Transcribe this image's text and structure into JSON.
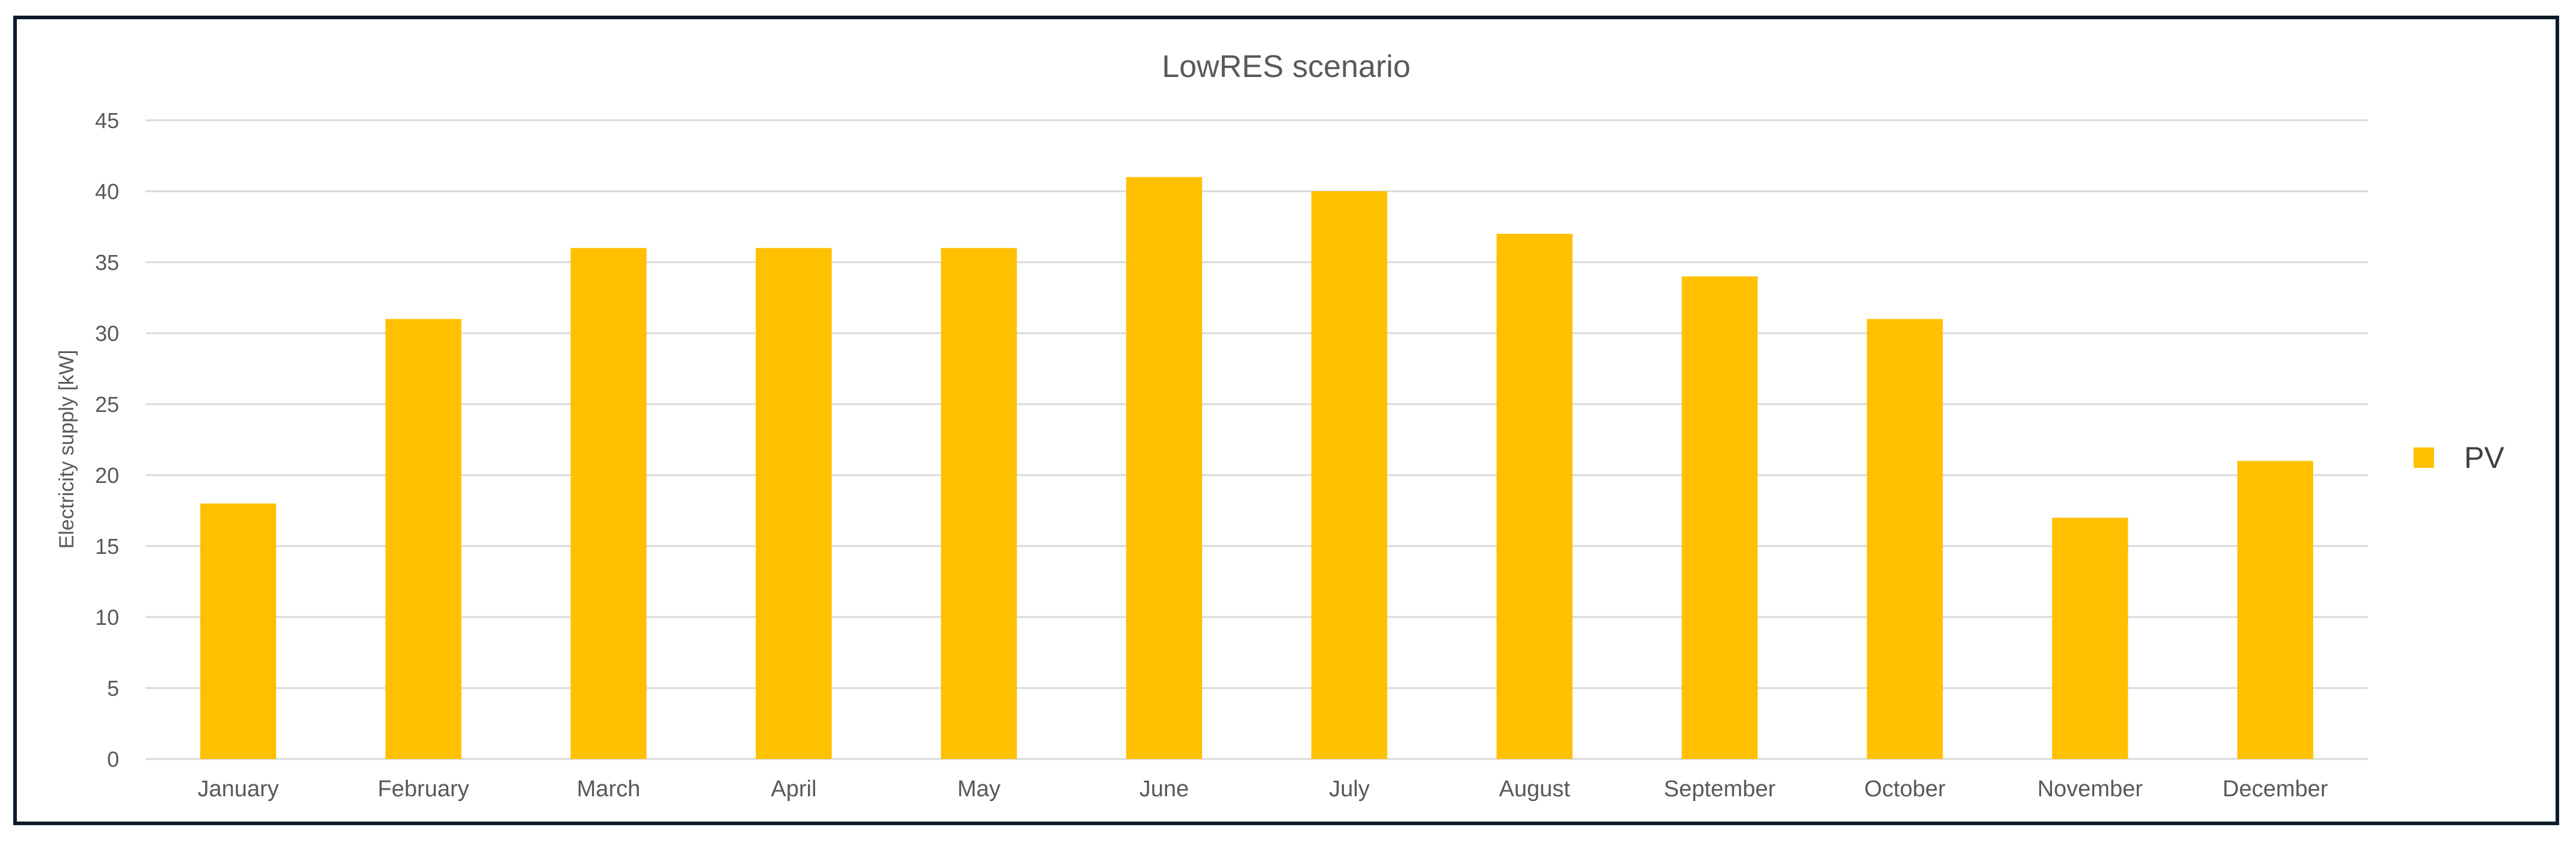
{
  "chart_data": {
    "type": "bar",
    "title": "LowRES scenario",
    "xlabel": "",
    "ylabel": "Electricity supply [kW]",
    "ylim": [
      0,
      45
    ],
    "yticks": [
      0,
      5,
      10,
      15,
      20,
      25,
      30,
      35,
      40,
      45
    ],
    "grid": true,
    "legend_position": "right",
    "categories": [
      "January",
      "February",
      "March",
      "April",
      "May",
      "June",
      "July",
      "August",
      "September",
      "October",
      "November",
      "December"
    ],
    "series": [
      {
        "name": "PV",
        "color": "#FFC000",
        "values": [
          18,
          31,
          36,
          36,
          36,
          41,
          40,
          37,
          34,
          31,
          17,
          21
        ]
      }
    ]
  }
}
